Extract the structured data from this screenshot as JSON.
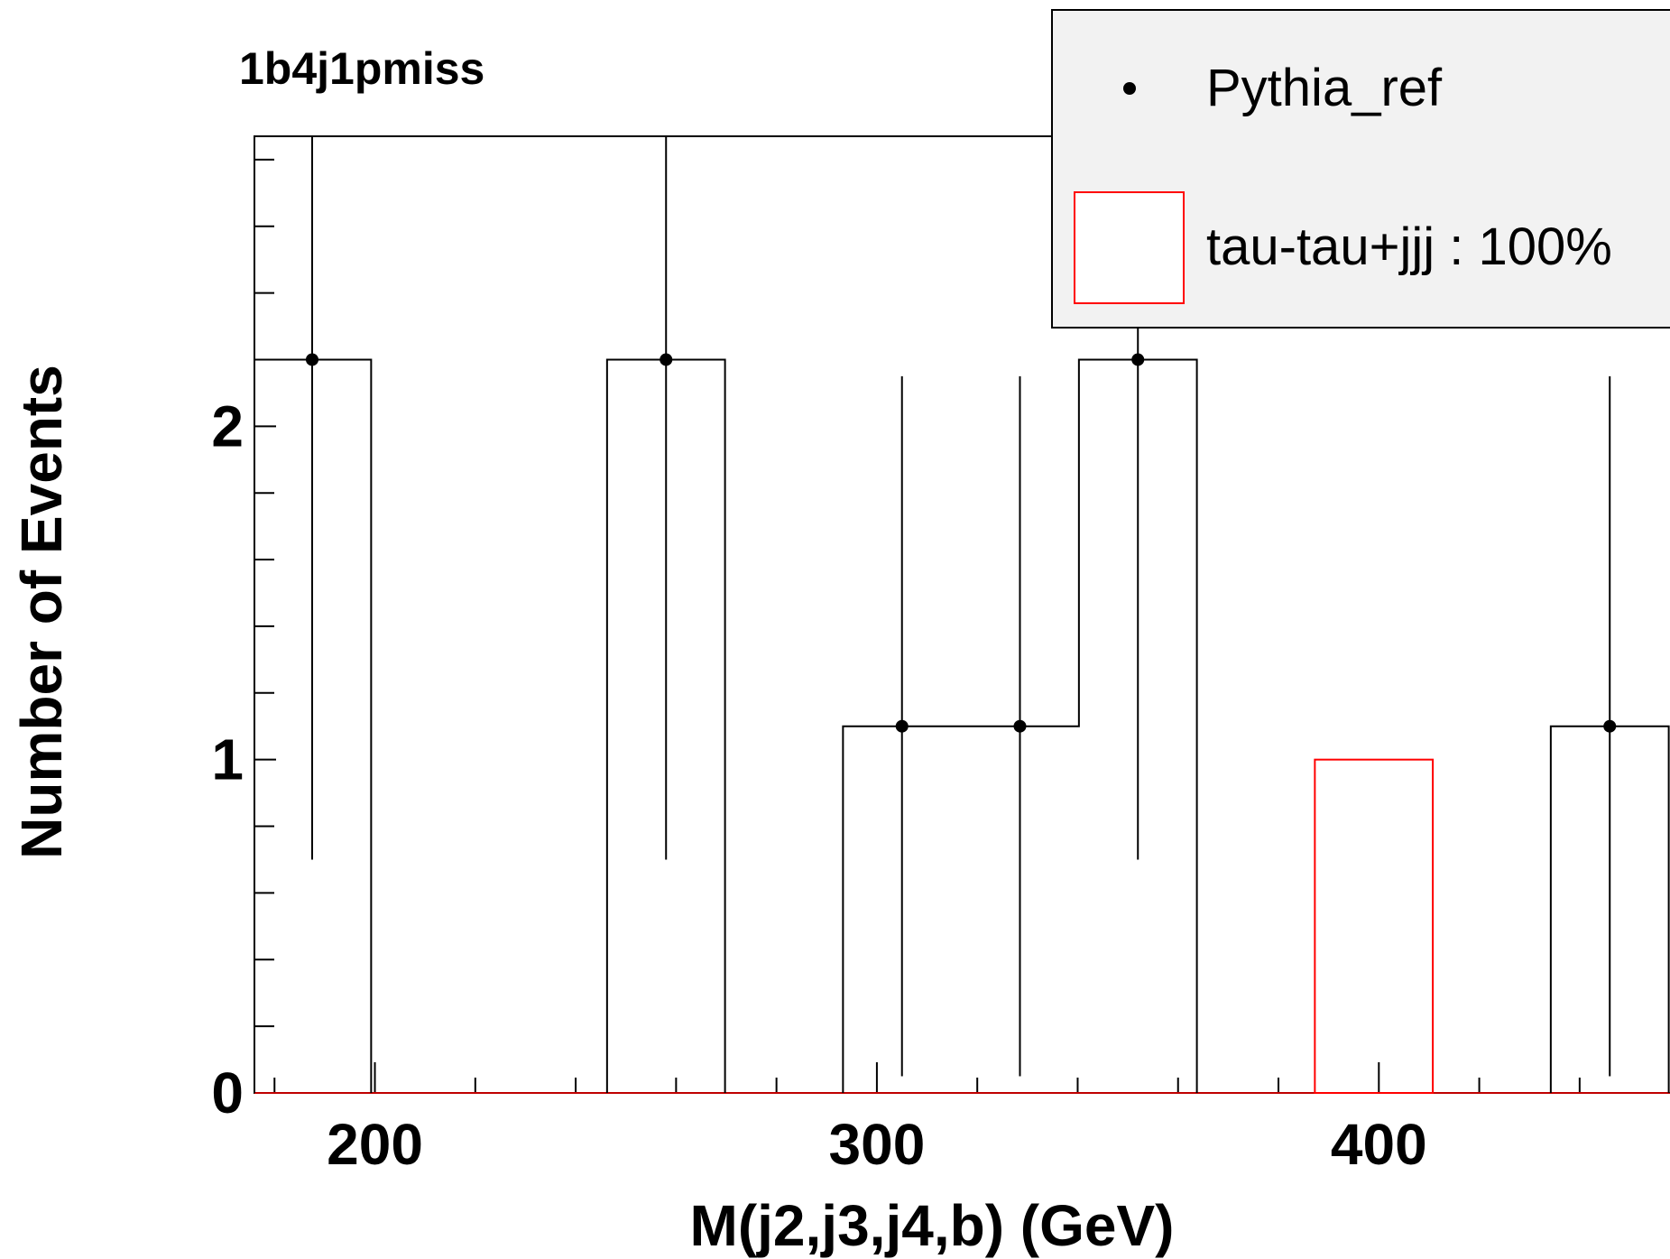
{
  "chart_data": {
    "type": "bar",
    "title": "1b4j1pmiss",
    "xlabel": "M(j2,j3,j4,b) (GeV)",
    "ylabel": "Number of Events",
    "xlim": [
      176,
      458
    ],
    "ylim": [
      0,
      2.87
    ],
    "x_ticks": [
      "200",
      "300",
      "400"
    ],
    "y_ticks": [
      "0",
      "1",
      "2"
    ],
    "bin_width": 23.5,
    "legend_position": "top-right",
    "series": [
      {
        "name": "Pythia_ref",
        "style": "points-with-errors-and-histogram",
        "color": "#000000",
        "points": [
          {
            "x": 187.5,
            "y": 2.2,
            "err_low": 1.5,
            "err_high": 2.1
          },
          {
            "x": 258.0,
            "y": 2.2,
            "err_low": 1.5,
            "err_high": 2.1
          },
          {
            "x": 305.0,
            "y": 1.1,
            "err_low": 1.05,
            "err_high": 1.05
          },
          {
            "x": 328.5,
            "y": 1.1,
            "err_low": 1.05,
            "err_high": 1.05
          },
          {
            "x": 352.0,
            "y": 2.2,
            "err_low": 1.5,
            "err_high": 2.1
          },
          {
            "x": 446.0,
            "y": 1.1,
            "err_low": 1.05,
            "err_high": 1.05
          }
        ]
      },
      {
        "name": "tau-tau+jjj : 100%",
        "style": "histogram",
        "color": "#ff0000",
        "bins": [
          {
            "x": 399.0,
            "y": 1.0
          }
        ]
      }
    ]
  }
}
